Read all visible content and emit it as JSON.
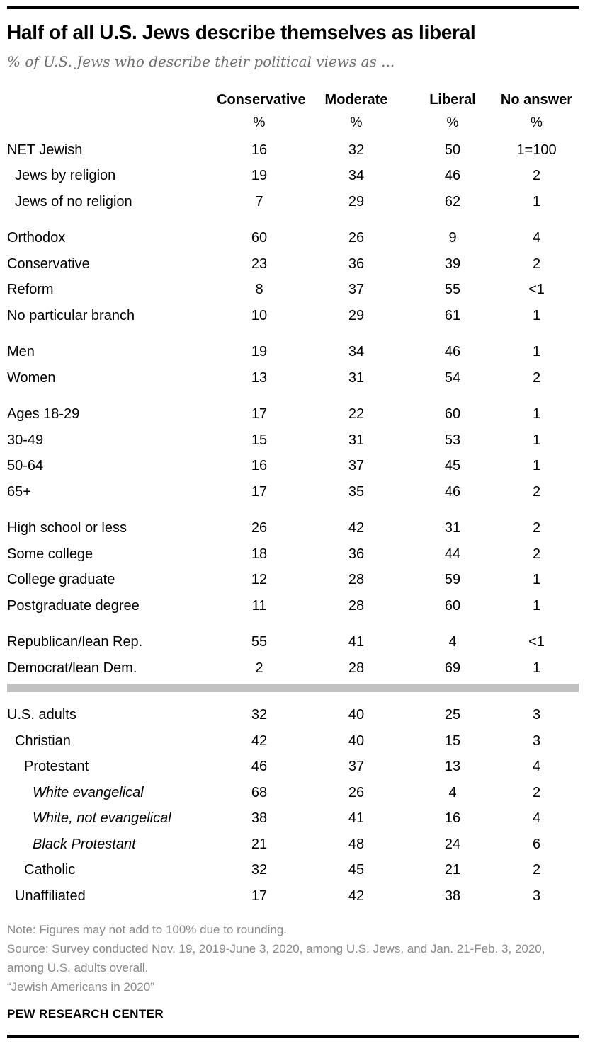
{
  "header": {
    "title": "Half of all U.S. Jews describe themselves as liberal",
    "subtitle": "% of U.S. Jews who describe their political views as ..."
  },
  "chart_data": {
    "type": "table",
    "title": "Half of all U.S. Jews describe themselves as liberal",
    "subtitle": "% of U.S. Jews who describe their political views as ...",
    "columns": [
      "Conservative",
      "Moderate",
      "Liberal",
      "No answer"
    ],
    "unit_row": [
      "%",
      "%",
      "%",
      "%"
    ],
    "groups": [
      {
        "rows": [
          {
            "label": "NET Jewish",
            "indent": 0,
            "italic": false,
            "values": [
              "16",
              "32",
              "50",
              "1=100"
            ]
          },
          {
            "label": "Jews by religion",
            "indent": 1,
            "italic": false,
            "values": [
              "19",
              "34",
              "46",
              "2"
            ]
          },
          {
            "label": "Jews of no religion",
            "indent": 1,
            "italic": false,
            "values": [
              "7",
              "29",
              "62",
              "1"
            ]
          }
        ]
      },
      {
        "rows": [
          {
            "label": "Orthodox",
            "indent": 0,
            "italic": false,
            "values": [
              "60",
              "26",
              "9",
              "4"
            ]
          },
          {
            "label": "Conservative",
            "indent": 0,
            "italic": false,
            "values": [
              "23",
              "36",
              "39",
              "2"
            ]
          },
          {
            "label": "Reform",
            "indent": 0,
            "italic": false,
            "values": [
              "8",
              "37",
              "55",
              "<1"
            ]
          },
          {
            "label": "No particular branch",
            "indent": 0,
            "italic": false,
            "values": [
              "10",
              "29",
              "61",
              "1"
            ]
          }
        ]
      },
      {
        "rows": [
          {
            "label": "Men",
            "indent": 0,
            "italic": false,
            "values": [
              "19",
              "34",
              "46",
              "1"
            ]
          },
          {
            "label": "Women",
            "indent": 0,
            "italic": false,
            "values": [
              "13",
              "31",
              "54",
              "2"
            ]
          }
        ]
      },
      {
        "rows": [
          {
            "label": "Ages 18-29",
            "indent": 0,
            "italic": false,
            "values": [
              "17",
              "22",
              "60",
              "1"
            ]
          },
          {
            "label": "30-49",
            "indent": 0,
            "italic": false,
            "values": [
              "15",
              "31",
              "53",
              "1"
            ]
          },
          {
            "label": "50-64",
            "indent": 0,
            "italic": false,
            "values": [
              "16",
              "37",
              "45",
              "1"
            ]
          },
          {
            "label": "65+",
            "indent": 0,
            "italic": false,
            "values": [
              "17",
              "35",
              "46",
              "2"
            ]
          }
        ]
      },
      {
        "rows": [
          {
            "label": "High school or less",
            "indent": 0,
            "italic": false,
            "values": [
              "26",
              "42",
              "31",
              "2"
            ]
          },
          {
            "label": "Some college",
            "indent": 0,
            "italic": false,
            "values": [
              "18",
              "36",
              "44",
              "2"
            ]
          },
          {
            "label": "College graduate",
            "indent": 0,
            "italic": false,
            "values": [
              "12",
              "28",
              "59",
              "1"
            ]
          },
          {
            "label": "Postgraduate degree",
            "indent": 0,
            "italic": false,
            "values": [
              "11",
              "28",
              "60",
              "1"
            ]
          }
        ]
      },
      {
        "rows": [
          {
            "label": "Republican/lean Rep.",
            "indent": 0,
            "italic": false,
            "values": [
              "55",
              "41",
              "4",
              "<1"
            ]
          },
          {
            "label": "Democrat/lean Dem.",
            "indent": 0,
            "italic": false,
            "values": [
              "2",
              "28",
              "69",
              "1"
            ]
          }
        ]
      },
      {
        "divider_before": true,
        "rows": [
          {
            "label": "U.S. adults",
            "indent": 0,
            "italic": false,
            "values": [
              "32",
              "40",
              "25",
              "3"
            ]
          },
          {
            "label": "Christian",
            "indent": 1,
            "italic": false,
            "values": [
              "42",
              "40",
              "15",
              "3"
            ]
          },
          {
            "label": "Protestant",
            "indent": 2,
            "italic": false,
            "values": [
              "46",
              "37",
              "13",
              "4"
            ]
          },
          {
            "label": "White evangelical",
            "indent": 3,
            "italic": true,
            "values": [
              "68",
              "26",
              "4",
              "2"
            ]
          },
          {
            "label": "White, not evangelical",
            "indent": 3,
            "italic": true,
            "values": [
              "38",
              "41",
              "16",
              "4"
            ]
          },
          {
            "label": "Black Protestant",
            "indent": 3,
            "italic": true,
            "values": [
              "21",
              "48",
              "24",
              "6"
            ]
          },
          {
            "label": "Catholic",
            "indent": 2,
            "italic": false,
            "values": [
              "32",
              "45",
              "21",
              "2"
            ]
          },
          {
            "label": "Unaffiliated",
            "indent": 1,
            "italic": false,
            "values": [
              "17",
              "42",
              "38",
              "3"
            ]
          }
        ]
      }
    ]
  },
  "footer": {
    "lines": [
      "Note: Figures may not add to 100% due to rounding.",
      "Source: Survey conducted Nov. 19, 2019-June 3, 2020, among U.S. Jews, and Jan. 21-Feb. 3, 2020, among U.S. adults overall.",
      "“Jewish Americans in 2020”"
    ],
    "brand": "PEW RESEARCH CENTER"
  },
  "colors": {
    "rule": "#000000",
    "divider": "#c1c1c1",
    "muted_text": "#8a8a8a",
    "subtitle_text": "#6e6e6e"
  }
}
